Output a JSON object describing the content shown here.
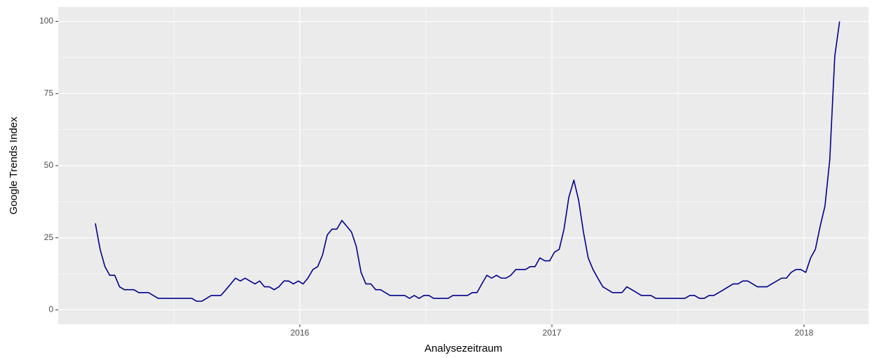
{
  "chart_data": {
    "type": "line",
    "x_label": "Analysezeitraum",
    "y_label": "Google Trends Index",
    "x": [
      2015.189,
      2015.208,
      2015.227,
      2015.246,
      2015.266,
      2015.285,
      2015.304,
      2015.323,
      2015.342,
      2015.361,
      2015.381,
      2015.4,
      2015.419,
      2015.438,
      2015.457,
      2015.476,
      2015.496,
      2015.515,
      2015.534,
      2015.553,
      2015.572,
      2015.591,
      2015.611,
      2015.63,
      2015.649,
      2015.668,
      2015.687,
      2015.707,
      2015.726,
      2015.745,
      2015.764,
      2015.783,
      2015.802,
      2015.822,
      2015.841,
      2015.86,
      2015.879,
      2015.898,
      2015.917,
      2015.937,
      2015.956,
      2015.975,
      2015.994,
      2016.013,
      2016.032,
      2016.052,
      2016.071,
      2016.09,
      2016.109,
      2016.128,
      2016.147,
      2016.167,
      2016.186,
      2016.205,
      2016.224,
      2016.243,
      2016.262,
      2016.282,
      2016.301,
      2016.32,
      2016.339,
      2016.358,
      2016.377,
      2016.397,
      2016.416,
      2016.435,
      2016.454,
      2016.473,
      2016.492,
      2016.512,
      2016.531,
      2016.55,
      2016.569,
      2016.588,
      2016.607,
      2016.627,
      2016.646,
      2016.665,
      2016.684,
      2016.703,
      2016.722,
      2016.742,
      2016.761,
      2016.78,
      2016.799,
      2016.818,
      2016.837,
      2016.857,
      2016.876,
      2016.895,
      2016.914,
      2016.933,
      2016.952,
      2016.972,
      2016.991,
      2017.01,
      2017.029,
      2017.048,
      2017.067,
      2017.087,
      2017.106,
      2017.125,
      2017.144,
      2017.163,
      2017.182,
      2017.202,
      2017.221,
      2017.24,
      2017.259,
      2017.278,
      2017.297,
      2017.317,
      2017.336,
      2017.355,
      2017.374,
      2017.393,
      2017.412,
      2017.432,
      2017.451,
      2017.47,
      2017.489,
      2017.508,
      2017.527,
      2017.547,
      2017.566,
      2017.585,
      2017.604,
      2017.623,
      2017.642,
      2017.662,
      2017.681,
      2017.7,
      2017.719,
      2017.738,
      2017.757,
      2017.777,
      2017.796,
      2017.815,
      2017.834,
      2017.853,
      2017.872,
      2017.892,
      2017.911,
      2017.93,
      2017.949,
      2017.968,
      2017.987,
      2018.007,
      2018.026,
      2018.045,
      2018.064,
      2018.083,
      2018.102,
      2018.122,
      2018.141
    ],
    "series": [
      {
        "color": "#00008b",
        "values": [
          30,
          21,
          15,
          12,
          12,
          8,
          7,
          7,
          7,
          6,
          6,
          6,
          5,
          4,
          4,
          4,
          4,
          4,
          4,
          4,
          4,
          3,
          3,
          4,
          5,
          5,
          5,
          7,
          9,
          11,
          10,
          11,
          10,
          9,
          10,
          8,
          8,
          7,
          8,
          10,
          10,
          9,
          10,
          9,
          11,
          14,
          15,
          19,
          26,
          28,
          28,
          31,
          29,
          27,
          22,
          13,
          9,
          9,
          7,
          7,
          6,
          5,
          5,
          5,
          5,
          4,
          5,
          4,
          5,
          5,
          4,
          4,
          4,
          4,
          5,
          5,
          5,
          5,
          6,
          6,
          9,
          12,
          11,
          12,
          11,
          11,
          12,
          14,
          14,
          14,
          15,
          15,
          18,
          17,
          17,
          20,
          21,
          28,
          39,
          45,
          38,
          27,
          18,
          14,
          11,
          8,
          7,
          6,
          6,
          6,
          8,
          7,
          6,
          5,
          5,
          5,
          4,
          4,
          4,
          4,
          4,
          4,
          4,
          5,
          5,
          4,
          4,
          5,
          5,
          6,
          7,
          8,
          9,
          9,
          10,
          10,
          9,
          8,
          8,
          8,
          9,
          10,
          11,
          11,
          13,
          14,
          14,
          13,
          18,
          21,
          29,
          36,
          52,
          88,
          100
        ]
      }
    ],
    "xlim": [
      2015.042,
      2018.256
    ],
    "xticks": [
      2016,
      2017,
      2018
    ],
    "ylim": [
      -5,
      105
    ],
    "yticks": [
      0,
      25,
      50,
      75,
      100
    ],
    "grid": true,
    "minor_grid": true
  }
}
